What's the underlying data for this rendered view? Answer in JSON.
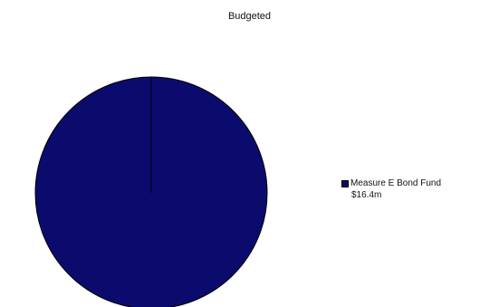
{
  "chart_data": {
    "type": "pie",
    "title": "Budgeted",
    "categories": [
      "Measure E Bond Fund"
    ],
    "values": [
      16.4
    ],
    "value_labels": [
      "$16.4m"
    ],
    "colors": [
      "#0b0b6e"
    ],
    "legend_placement": "right"
  }
}
